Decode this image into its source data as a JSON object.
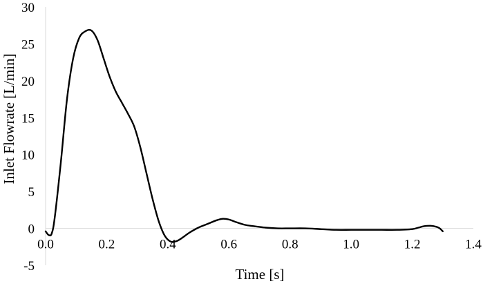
{
  "chart_data": {
    "type": "line",
    "title": "",
    "xlabel": "Time [s]",
    "ylabel": "Inlet Flowrate [L/min]",
    "xlim": [
      0,
      1.4
    ],
    "ylim": [
      -5,
      30
    ],
    "grid": false,
    "legend": "none",
    "colors": {
      "line": "#000000",
      "axis": "#d9d9d9",
      "text": "#000000"
    },
    "x_ticks": [
      {
        "value": 0.0,
        "label": "0.0"
      },
      {
        "value": 0.2,
        "label": "0.2"
      },
      {
        "value": 0.4,
        "label": "0.4"
      },
      {
        "value": 0.6,
        "label": "0.6"
      },
      {
        "value": 0.8,
        "label": "0.8"
      },
      {
        "value": 1.0,
        "label": "1.0"
      },
      {
        "value": 1.2,
        "label": "1.2"
      },
      {
        "value": 1.4,
        "label": "1.4"
      }
    ],
    "y_ticks": [
      {
        "value": -5,
        "label": "-5"
      },
      {
        "value": 0,
        "label": "0"
      },
      {
        "value": 5,
        "label": "5"
      },
      {
        "value": 10,
        "label": "10"
      },
      {
        "value": 15,
        "label": "15"
      },
      {
        "value": 20,
        "label": "20"
      },
      {
        "value": 25,
        "label": "25"
      },
      {
        "value": 30,
        "label": "30"
      }
    ],
    "series": [
      {
        "x": [
          0.0,
          0.01,
          0.02,
          0.03,
          0.05,
          0.07,
          0.09,
          0.11,
          0.13,
          0.15,
          0.17,
          0.19,
          0.21,
          0.23,
          0.25,
          0.27,
          0.29,
          0.31,
          0.33,
          0.35,
          0.37,
          0.39,
          0.41,
          0.43,
          0.45,
          0.47,
          0.5,
          0.53,
          0.56,
          0.58,
          0.6,
          0.62,
          0.65,
          0.68,
          0.72,
          0.76,
          0.8,
          0.85,
          0.9,
          0.95,
          1.0,
          1.05,
          1.1,
          1.15,
          1.2,
          1.22,
          1.24,
          1.26,
          1.28,
          1.29,
          1.3
        ],
        "y": [
          -0.4,
          -0.9,
          -0.7,
          1.5,
          9.0,
          17.5,
          23.0,
          25.8,
          26.7,
          26.8,
          25.5,
          23.0,
          20.5,
          18.5,
          17.0,
          15.5,
          13.8,
          11.0,
          7.5,
          4.0,
          1.0,
          -1.0,
          -1.8,
          -1.7,
          -1.2,
          -0.6,
          0.1,
          0.6,
          1.1,
          1.3,
          1.2,
          0.9,
          0.5,
          0.3,
          0.1,
          0.0,
          0.0,
          0.0,
          -0.1,
          -0.2,
          -0.2,
          -0.2,
          -0.2,
          -0.2,
          -0.1,
          0.1,
          0.3,
          0.35,
          0.2,
          0.0,
          -0.4
        ]
      }
    ]
  }
}
